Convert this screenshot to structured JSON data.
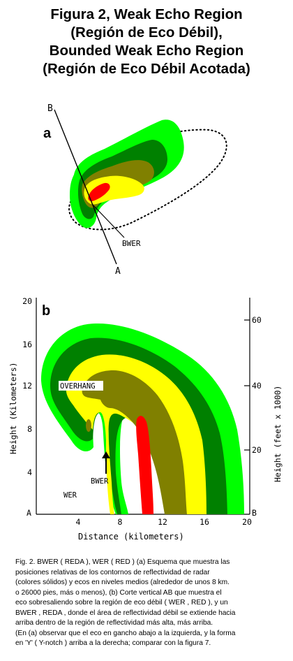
{
  "title": {
    "line1": "Figura 2, Weak Echo Region",
    "line2": "(Región de Eco Débil),",
    "line3": "Bounded Weak Echo Region",
    "line4": "(Región de Eco Débil Acotada)"
  },
  "panel_a": {
    "label": "a",
    "point_b": "B",
    "point_a": "A",
    "annotation": "BWER"
  },
  "panel_b": {
    "label": "b",
    "left_axis_label": "Height (Kilometers)",
    "right_axis_label": "Height (feet x 1000)",
    "bottom_axis_label": "Distance (kilometers)",
    "left_ticks": [
      "20",
      "16",
      "12",
      "8",
      "4"
    ],
    "right_ticks": [
      "60",
      "40",
      "20"
    ],
    "bottom_ticks": [
      "4",
      "8",
      "12",
      "16",
      "20"
    ],
    "corner_a": "A",
    "corner_b": "B",
    "overhang_label": "OVERHANG",
    "bwer_label": "BWER",
    "wer_label": "WER"
  },
  "colors": {
    "light_green": "#00ff00",
    "dark_green": "#008000",
    "olive": "#808000",
    "yellow": "#ffff00",
    "red": "#ff0000"
  },
  "caption": {
    "line1": "Fig. 2. BWER ( REDA ), WER ( RED ) (a) Esquema que muestra las",
    "line2": "posiciones relativas de los contornos de reflectividad de radar",
    "line3": "(colores sólidos) y ecos en niveles medios (alrededor de unos 8 km.",
    "line4": "o 26000 pies, más o menos), (b) Corte vertical AB que muestra el",
    "line5": "eco sobresaliendo sobre la región de eco débil ( WER , RED ), y un",
    "line6": "BWER , REDA , donde el área de reflectividad débil se extiende hacia",
    "line7": "arriba dentro de la región de reflectividad más alta, más arriba.",
    "line8": "(En (a) observar que el eco en gancho abajo a la izquierda, y la forma",
    "line9": "en 'Y' ( Y-notch ) arriba a la derecha; comparar con la figura 7."
  }
}
